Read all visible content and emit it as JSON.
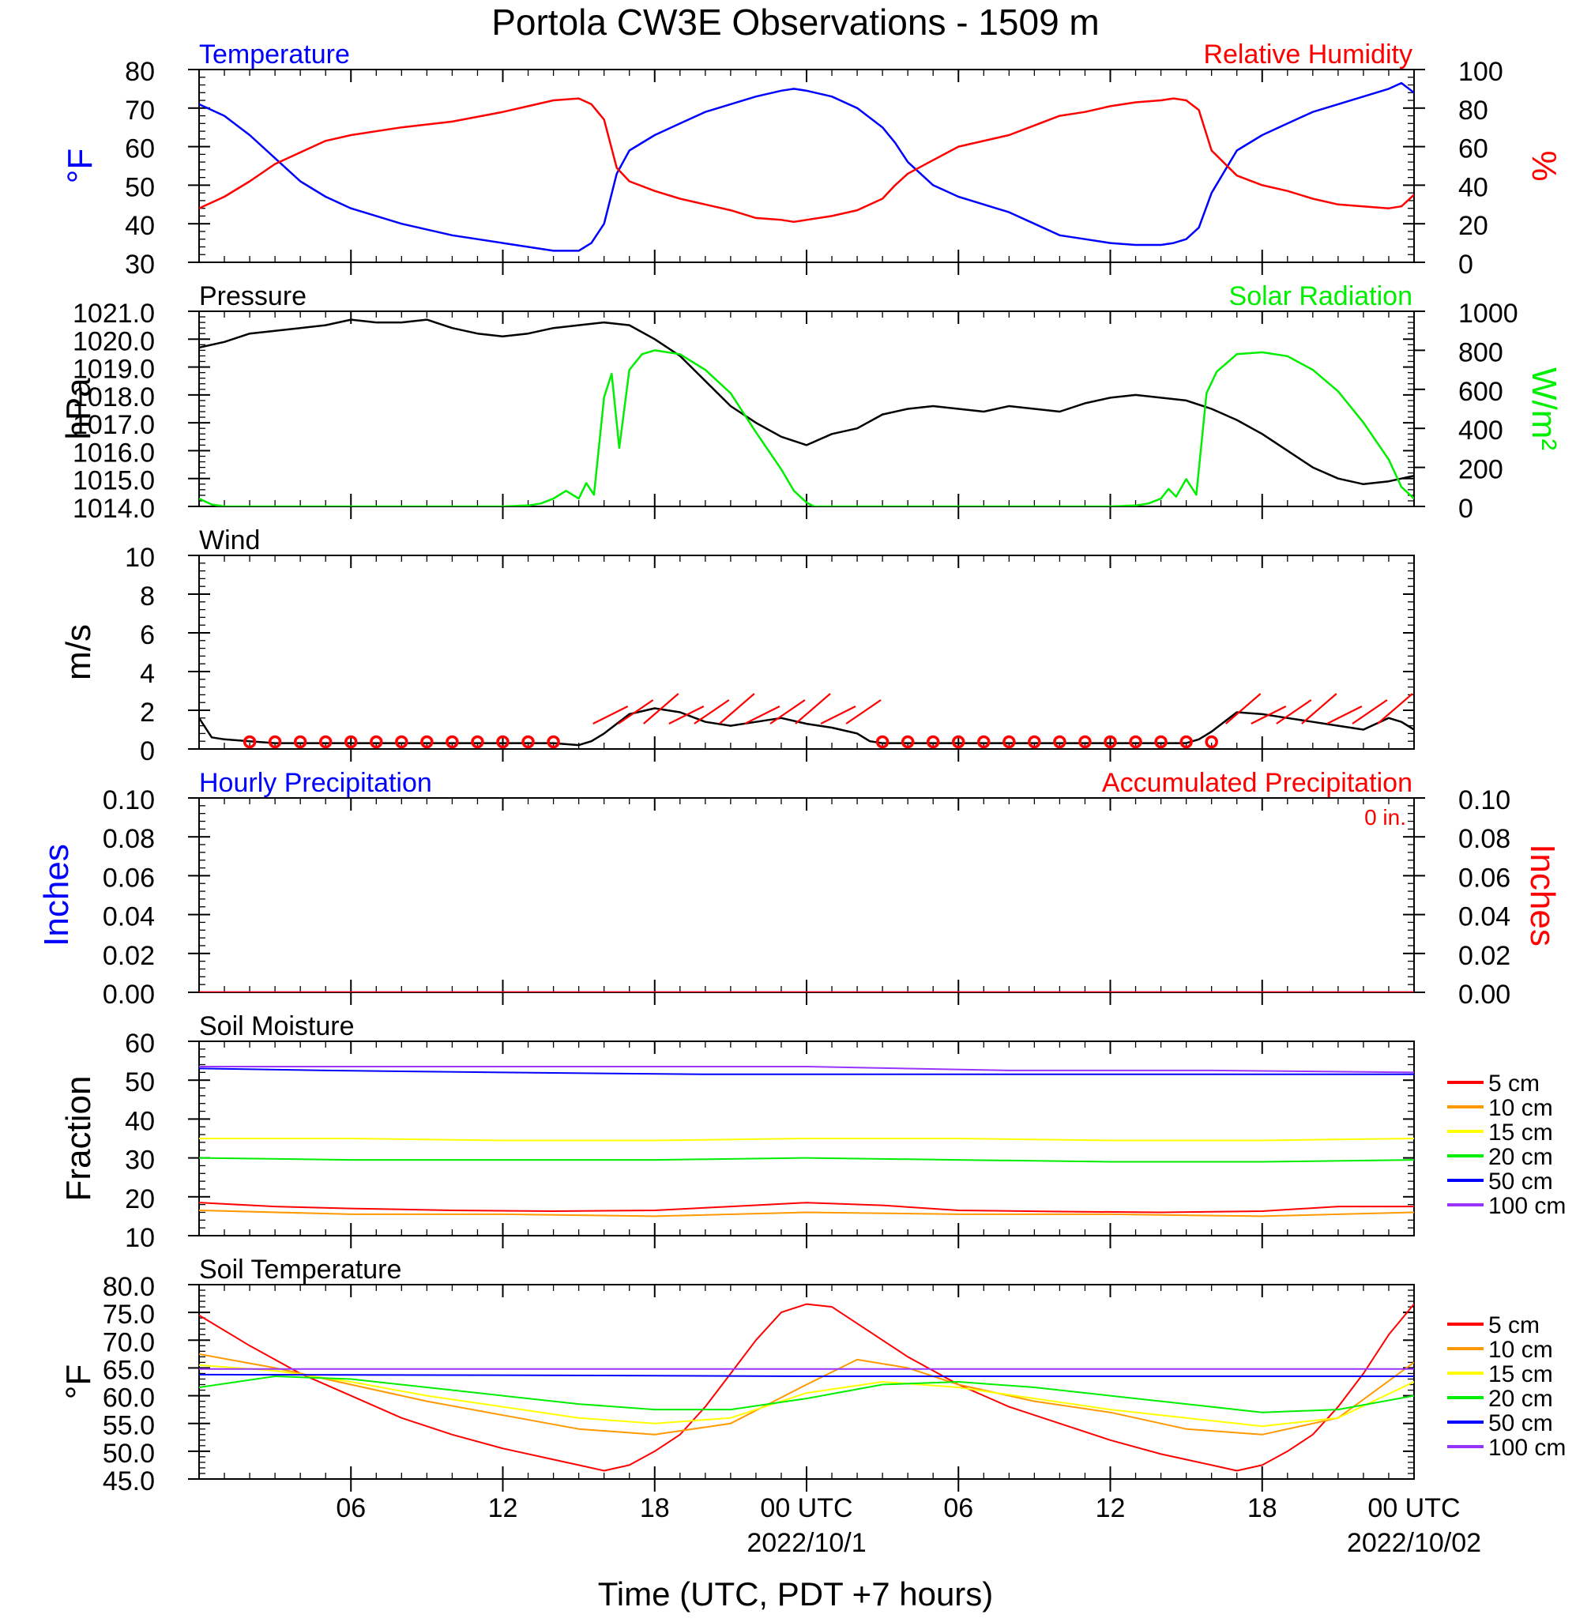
{
  "title": "Portola CW3E Observations - 1509 m",
  "x_axis": {
    "label": "Time (UTC, PDT +7 hours)",
    "tick_labels": [
      "06",
      "12",
      "18",
      "00 UTC",
      "06",
      "12",
      "18",
      "00 UTC"
    ],
    "date_labels": [
      "2022/10/1",
      "2022/10/02"
    ]
  },
  "colors": {
    "temperature": "#0000ff",
    "humidity": "#ff0000",
    "pressure": "#000000",
    "solar": "#00ee00",
    "wind": "#000000",
    "wind_barbs": "#ff0000",
    "hourly_precip": "#0000ff",
    "accum_precip": "#ff0000",
    "depth_5cm": "#ff0000",
    "depth_10cm": "#ff9900",
    "depth_15cm": "#ffff00",
    "depth_20cm": "#00ee00",
    "depth_50cm": "#0000ff",
    "depth_100cm": "#9933ff"
  },
  "chart_data": [
    {
      "type": "line",
      "panel": "temperature-humidity",
      "left_title": "Temperature",
      "right_title": "Relative Humidity",
      "left_unit": "°F",
      "right_unit": "%",
      "left_ylim": [
        30,
        80
      ],
      "right_ylim": [
        0,
        100
      ],
      "left_ticks": [
        "80",
        "70",
        "60",
        "50",
        "40",
        "30"
      ],
      "right_ticks": [
        "100",
        "80",
        "60",
        "40",
        "20",
        "0"
      ],
      "series": [
        {
          "name": "Temperature",
          "axis": "left",
          "x": [
            0,
            1,
            2,
            3,
            4,
            5,
            6,
            8,
            10,
            12,
            13,
            14,
            15,
            15.5,
            16,
            16.5,
            17,
            18,
            19,
            20,
            21,
            22,
            23,
            23.5,
            24,
            25,
            26,
            27,
            27.5,
            28,
            29,
            30,
            32,
            33,
            34,
            35,
            36,
            37,
            38,
            38.5,
            39,
            39.5,
            40,
            41,
            42,
            43,
            44,
            45,
            46,
            47,
            47.5,
            48
          ],
          "y": [
            71,
            68,
            63,
            57,
            51,
            47,
            44,
            40,
            37,
            35,
            34,
            33,
            33,
            35,
            40,
            53,
            59,
            63,
            66,
            69,
            71,
            73,
            74.5,
            75,
            74.5,
            73,
            70,
            65,
            61,
            56,
            50,
            47,
            43,
            40,
            37,
            36,
            35,
            34.5,
            34.5,
            35,
            36,
            39,
            48,
            59,
            63,
            66,
            69,
            71,
            73,
            75,
            76.5,
            74
          ]
        },
        {
          "name": "Relative Humidity",
          "axis": "right",
          "x": [
            0,
            1,
            2,
            3,
            4,
            5,
            6,
            8,
            10,
            12,
            13,
            14,
            15,
            15.5,
            16,
            16.5,
            17,
            18,
            19,
            20,
            21,
            22,
            23,
            23.5,
            24,
            25,
            26,
            27,
            27.5,
            28,
            29,
            30,
            32,
            33,
            34,
            35,
            36,
            37,
            38,
            38.5,
            39,
            39.5,
            40,
            41,
            42,
            43,
            44,
            45,
            46,
            47,
            47.5,
            48
          ],
          "y": [
            28,
            34,
            42,
            51,
            57,
            63,
            66,
            70,
            73,
            78,
            81,
            84,
            85,
            82,
            74,
            49,
            42,
            37,
            33,
            30,
            27,
            23,
            22,
            21,
            22,
            24,
            27,
            33,
            40,
            46,
            53,
            60,
            66,
            71,
            76,
            78,
            81,
            83,
            84,
            85,
            84,
            79,
            58,
            45,
            40,
            37,
            33,
            30,
            29,
            28,
            29,
            35
          ]
        }
      ]
    },
    {
      "type": "line",
      "panel": "pressure-solar",
      "left_title": "Pressure",
      "right_title": "Solar Radiation",
      "left_unit": "hPa",
      "right_unit": "W/m²",
      "left_ylim": [
        1014,
        1021
      ],
      "right_ylim": [
        0,
        1000
      ],
      "left_ticks": [
        "1021.0",
        "1020.0",
        "1019.0",
        "1018.0",
        "1017.0",
        "1016.0",
        "1015.0",
        "1014.0"
      ],
      "right_ticks": [
        "1000",
        "800",
        "600",
        "400",
        "200",
        "0"
      ],
      "series": [
        {
          "name": "Pressure",
          "axis": "left",
          "x": [
            0,
            1,
            2,
            3,
            4,
            5,
            6,
            7,
            8,
            9,
            10,
            11,
            12,
            13,
            14,
            15,
            16,
            17,
            18,
            19,
            20,
            21,
            22,
            23,
            24,
            25,
            26,
            27,
            28,
            29,
            30,
            31,
            32,
            33,
            34,
            35,
            36,
            37,
            38,
            39,
            40,
            41,
            42,
            43,
            44,
            45,
            46,
            47,
            48
          ],
          "y": [
            1019.7,
            1019.9,
            1020.2,
            1020.3,
            1020.4,
            1020.5,
            1020.7,
            1020.6,
            1020.6,
            1020.7,
            1020.4,
            1020.2,
            1020.1,
            1020.2,
            1020.4,
            1020.5,
            1020.6,
            1020.5,
            1020.0,
            1019.4,
            1018.5,
            1017.6,
            1017.0,
            1016.5,
            1016.2,
            1016.6,
            1016.8,
            1017.3,
            1017.5,
            1017.6,
            1017.5,
            1017.4,
            1017.6,
            1017.5,
            1017.4,
            1017.7,
            1017.9,
            1018.0,
            1017.9,
            1017.8,
            1017.5,
            1017.1,
            1016.6,
            1016.0,
            1015.4,
            1015.0,
            1014.8,
            1014.9,
            1015.1
          ]
        },
        {
          "name": "Solar Radiation",
          "axis": "right",
          "x": [
            0,
            0.5,
            1,
            12,
            13,
            13.5,
            14,
            14.5,
            15,
            15.3,
            15.6,
            16,
            16.3,
            16.6,
            17,
            17.5,
            18,
            19,
            20,
            21,
            22,
            23,
            23.5,
            24,
            24.3,
            24.6,
            25,
            36,
            37,
            37.5,
            38,
            38.3,
            38.6,
            39,
            39.4,
            39.8,
            40.2,
            41,
            42,
            43,
            44,
            45,
            46,
            47,
            47.5,
            48
          ],
          "y": [
            40,
            10,
            0,
            0,
            5,
            15,
            40,
            80,
            40,
            120,
            60,
            560,
            680,
            300,
            700,
            780,
            800,
            780,
            700,
            580,
            380,
            190,
            80,
            20,
            0,
            0,
            0,
            0,
            5,
            15,
            40,
            90,
            50,
            140,
            60,
            580,
            690,
            780,
            790,
            770,
            700,
            590,
            430,
            240,
            100,
            40
          ]
        }
      ]
    },
    {
      "type": "line",
      "panel": "wind",
      "left_title": "Wind",
      "left_unit": "m/s",
      "left_ylim": [
        0,
        10
      ],
      "left_ticks": [
        "10",
        "8",
        "6",
        "4",
        "2",
        "0"
      ],
      "series": [
        {
          "name": "Wind",
          "axis": "left",
          "x": [
            0,
            0.5,
            1,
            2,
            3,
            4,
            6,
            8,
            10,
            12,
            14,
            15,
            15.5,
            16,
            16.5,
            17,
            18,
            19,
            20,
            21,
            22,
            23,
            24,
            25,
            26,
            26.5,
            27,
            28,
            29,
            30,
            32,
            34,
            36,
            38,
            39,
            39.5,
            40,
            40.5,
            41,
            42,
            43,
            44,
            45,
            46,
            47,
            47.5,
            48
          ],
          "y": [
            1.6,
            0.6,
            0.5,
            0.4,
            0.3,
            0.3,
            0.3,
            0.3,
            0.3,
            0.3,
            0.3,
            0.2,
            0.4,
            0.8,
            1.3,
            1.8,
            2.1,
            1.9,
            1.4,
            1.2,
            1.4,
            1.6,
            1.3,
            1.1,
            0.8,
            0.4,
            0.3,
            0.3,
            0.3,
            0.3,
            0.3,
            0.3,
            0.3,
            0.3,
            0.3,
            0.5,
            0.9,
            1.4,
            1.9,
            1.8,
            1.6,
            1.4,
            1.2,
            1.0,
            1.6,
            1.4,
            1.0
          ]
        }
      ]
    },
    {
      "type": "line",
      "panel": "precipitation",
      "left_title": "Hourly Precipitation",
      "right_title": "Accumulated Precipitation",
      "accumulated_label": "0 in.",
      "left_unit": "Inches",
      "right_unit": "Inches",
      "left_ylim": [
        0,
        0.1
      ],
      "right_ylim": [
        0,
        0.1
      ],
      "left_ticks": [
        "0.10",
        "0.08",
        "0.06",
        "0.04",
        "0.02",
        "0.00"
      ],
      "right_ticks": [
        "0.10",
        "0.08",
        "0.06",
        "0.04",
        "0.02",
        "0.00"
      ],
      "series": [
        {
          "name": "Hourly Precipitation",
          "axis": "left",
          "x": [
            0,
            48
          ],
          "y": [
            0,
            0
          ]
        },
        {
          "name": "Accumulated Precipitation",
          "axis": "right",
          "x": [
            0,
            48
          ],
          "y": [
            0,
            0
          ]
        }
      ]
    },
    {
      "type": "line",
      "panel": "soil-moisture",
      "left_title": "Soil Moisture",
      "left_unit": "Fraction",
      "left_ylim": [
        10,
        60
      ],
      "left_ticks": [
        "60",
        "50",
        "40",
        "30",
        "20",
        "10"
      ],
      "series": [
        {
          "name": "5 cm",
          "x": [
            0,
            3,
            6,
            10,
            14,
            18,
            21,
            24,
            27,
            30,
            34,
            38,
            42,
            45,
            48
          ],
          "y": [
            18.5,
            17.5,
            17,
            16.5,
            16.3,
            16.5,
            17.5,
            18.5,
            17.8,
            16.5,
            16.2,
            16,
            16.3,
            17.5,
            17.5
          ]
        },
        {
          "name": "10 cm",
          "x": [
            0,
            6,
            12,
            18,
            24,
            30,
            36,
            42,
            48
          ],
          "y": [
            16.5,
            15.5,
            15.5,
            15,
            16,
            15.5,
            15.5,
            15,
            16
          ]
        },
        {
          "name": "15 cm",
          "x": [
            0,
            6,
            12,
            18,
            24,
            30,
            36,
            42,
            48
          ],
          "y": [
            35,
            35,
            34.5,
            34.5,
            35,
            35,
            34.5,
            34.5,
            35
          ]
        },
        {
          "name": "20 cm",
          "x": [
            0,
            6,
            12,
            18,
            24,
            30,
            36,
            42,
            48
          ],
          "y": [
            30,
            29.5,
            29.5,
            29.5,
            30,
            29.5,
            29,
            29,
            29.5
          ]
        },
        {
          "name": "50 cm",
          "x": [
            0,
            5,
            12,
            20,
            24,
            32,
            40,
            48
          ],
          "y": [
            53,
            52.5,
            52,
            51.5,
            51.5,
            51.5,
            51.5,
            51.5
          ]
        },
        {
          "name": "100 cm",
          "x": [
            0,
            10,
            20,
            24,
            32,
            40,
            48
          ],
          "y": [
            53.5,
            53.5,
            53.5,
            53.5,
            52.5,
            52.5,
            52
          ]
        }
      ]
    },
    {
      "type": "line",
      "panel": "soil-temperature",
      "left_title": "Soil Temperature",
      "left_unit": "°F",
      "left_ylim": [
        45,
        80
      ],
      "left_ticks": [
        "80.0",
        "75.0",
        "70.0",
        "65.0",
        "60.0",
        "55.0",
        "50.0",
        "45.0"
      ],
      "series": [
        {
          "name": "5 cm",
          "x": [
            0,
            2,
            4,
            6,
            8,
            10,
            12,
            14,
            15,
            16,
            17,
            18,
            19,
            20,
            21,
            22,
            23,
            24,
            25,
            26,
            28,
            30,
            32,
            34,
            36,
            38,
            39,
            40,
            41,
            42,
            43,
            44,
            45,
            46,
            47,
            48
          ],
          "y": [
            74.5,
            69,
            64,
            60,
            56,
            53,
            50.5,
            48.5,
            47.5,
            46.5,
            47.5,
            50,
            53,
            58,
            64,
            70,
            75,
            76.5,
            76,
            73,
            67,
            62,
            58,
            55,
            52,
            49.5,
            48.5,
            47.5,
            46.5,
            47.5,
            50,
            53,
            58,
            64,
            71,
            76.5
          ]
        },
        {
          "name": "10 cm",
          "x": [
            0,
            3,
            6,
            9,
            12,
            15,
            18,
            21,
            24,
            26,
            28,
            30,
            33,
            36,
            39,
            42,
            45,
            48
          ],
          "y": [
            67.5,
            65,
            62,
            59,
            56.5,
            54,
            53,
            55,
            62,
            66.5,
            65,
            62,
            59,
            57,
            54,
            53,
            56,
            66
          ]
        },
        {
          "name": "15 cm",
          "x": [
            0,
            3,
            6,
            9,
            12,
            15,
            18,
            21,
            24,
            27,
            30,
            33,
            36,
            39,
            42,
            45,
            48
          ],
          "y": [
            65.5,
            64.5,
            62.5,
            60,
            58,
            56,
            55,
            56,
            60.5,
            62.5,
            61.5,
            59.5,
            57.5,
            56,
            54.5,
            56,
            62.5
          ]
        },
        {
          "name": "20 cm",
          "x": [
            0,
            3,
            6,
            9,
            12,
            15,
            18,
            21,
            24,
            27,
            30,
            33,
            36,
            39,
            42,
            45,
            48
          ],
          "y": [
            61.5,
            63.5,
            63,
            61.5,
            60,
            58.5,
            57.5,
            57.5,
            59.5,
            62,
            62.5,
            61.5,
            60,
            58.5,
            57,
            57.5,
            60
          ]
        },
        {
          "name": "50 cm",
          "x": [
            0,
            12,
            24,
            36,
            48
          ],
          "y": [
            63.8,
            63.7,
            63.5,
            63.5,
            63.5
          ]
        },
        {
          "name": "100 cm",
          "x": [
            0,
            12,
            24,
            36,
            48
          ],
          "y": [
            64.8,
            64.8,
            64.8,
            64.8,
            64.8
          ]
        }
      ]
    }
  ],
  "wind_barbs": {
    "calm_hours": [
      2,
      3,
      4,
      5,
      6,
      7,
      8,
      9,
      10,
      11,
      12,
      13,
      14,
      27,
      28,
      29,
      30,
      31,
      32,
      33,
      34,
      35,
      36,
      37,
      38,
      39,
      40
    ],
    "barb_hours": [
      16,
      17,
      18,
      19,
      20,
      21,
      22,
      23,
      24,
      25,
      26,
      41,
      42,
      43,
      44,
      45,
      46,
      47
    ]
  },
  "legend": {
    "soil_moisture": [
      "5 cm",
      "10 cm",
      "15 cm",
      "20 cm",
      "50 cm",
      "100 cm"
    ],
    "soil_temperature": [
      "5 cm",
      "10 cm",
      "15 cm",
      "20 cm",
      "50 cm",
      "100 cm"
    ]
  }
}
